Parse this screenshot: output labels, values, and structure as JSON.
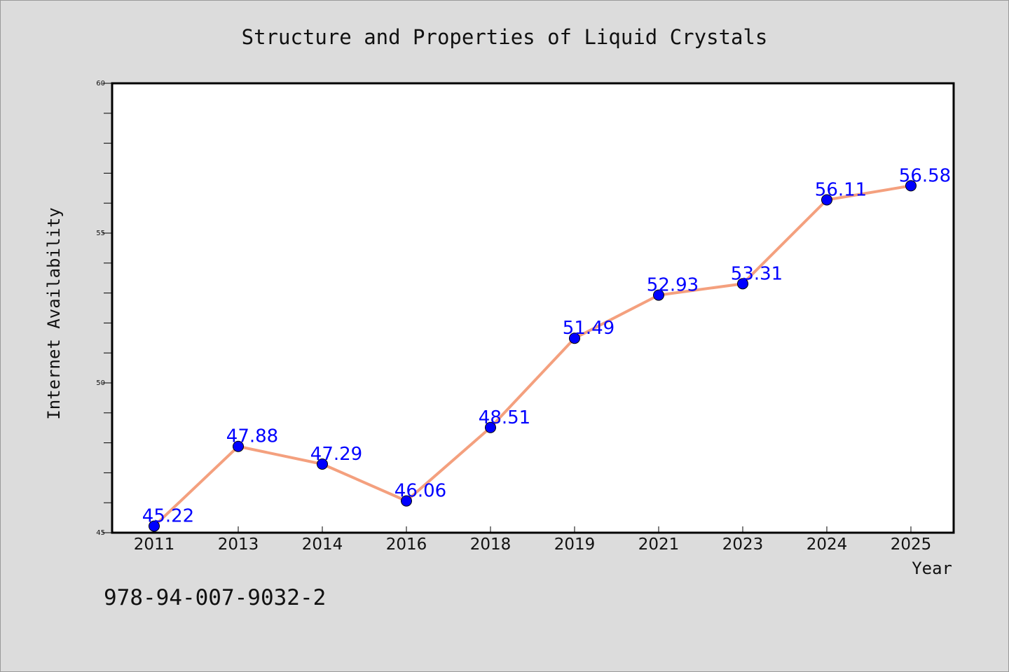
{
  "chart_data": {
    "type": "line",
    "title": "Structure and Properties of Liquid Crystals",
    "xlabel": "Year",
    "ylabel": "Internet Availability",
    "categories": [
      "2011",
      "2013",
      "2014",
      "2016",
      "2018",
      "2019",
      "2021",
      "2023",
      "2024",
      "2025"
    ],
    "series": [
      {
        "values": [
          45.22,
          47.88,
          47.29,
          46.06,
          48.51,
          51.49,
          52.93,
          53.31,
          56.11,
          56.58
        ],
        "labels": [
          "45.22",
          "47.88",
          "47.29",
          "46.06",
          "48.51",
          "51.49",
          "52.93",
          "53.31",
          "56.11",
          "56.58"
        ],
        "line_color": "#f4a07e",
        "marker_color": "#0000ff"
      }
    ],
    "ylim": [
      45,
      60
    ],
    "yticks": [
      "45",
      "50",
      "55",
      "60"
    ],
    "grid": false,
    "legend": "none"
  },
  "footer": {
    "isbn": "978-94-007-9032-2"
  }
}
